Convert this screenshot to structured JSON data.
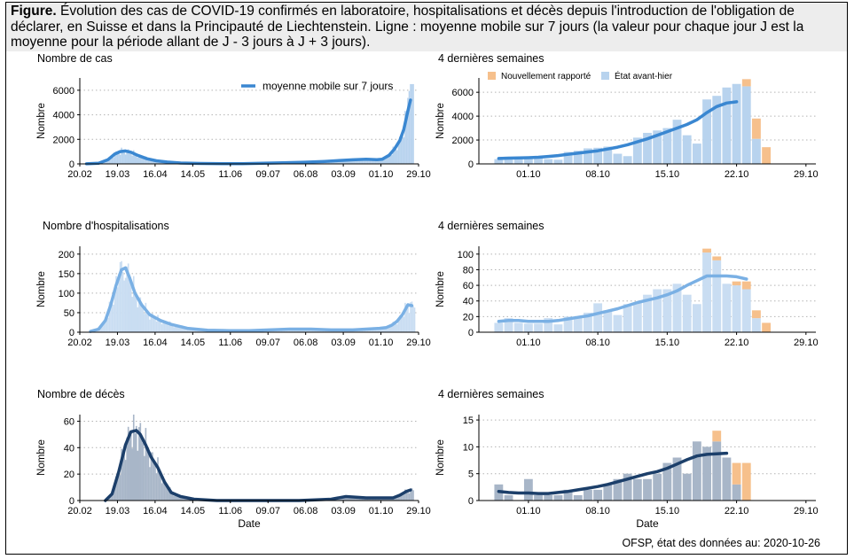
{
  "figure": {
    "caption_label": "Figure.",
    "caption_text": "Évolution des cas de COVID-19 confirmés en laboratoire, hospitalisations et décès depuis l'introduction de l'obligation de déclarer, en Suisse et dans la Principauté de Liechtenstein. Ligne : moyenne mobile sur 7 jours (la valeur pour chaque jour J est la moyenne pour la période allant de J - 3 jours à J + 3 jours).",
    "source": "OFSP, état des données au: 2020-10-26"
  },
  "colors": {
    "cases_line": "#3a87d1",
    "cases_bar": "#b8d3ee",
    "hosp_line": "#7ab0e4",
    "hosp_bar": "#c9ddf2",
    "deaths_line": "#1c3f6a",
    "deaths_bar": "#a8b6c8",
    "new_reported": "#f6c08c",
    "grid": "#b4b4b4"
  },
  "legends": {
    "moving_average": "moyenne mobile sur 7 jours",
    "new_reported": "Nouvellement rapporté",
    "day_before_yesterday": "État avant-hier"
  },
  "chart_data": [
    {
      "id": "cases_full",
      "type": "bar",
      "title": "Nombre de cas",
      "ylabel": "Nombre",
      "xlabel": "",
      "ylim": [
        0,
        7000
      ],
      "yticks": [
        0,
        2000,
        4000,
        6000
      ],
      "x_ticks": [
        "20.02",
        "19.03",
        "16.04",
        "14.05",
        "11.06",
        "09.07",
        "06.08",
        "03.09",
        "01.10",
        "29.10"
      ],
      "x_start": "2020-02-20",
      "x_end": "2020-10-29",
      "series_daily_weekly_approx": {
        "name": "Nombre de cas",
        "x": [
          "2020-02-24",
          "2020-03-02",
          "2020-03-09",
          "2020-03-16",
          "2020-03-23",
          "2020-03-30",
          "2020-04-06",
          "2020-04-13",
          "2020-04-20",
          "2020-04-27",
          "2020-05-04",
          "2020-05-11",
          "2020-05-18",
          "2020-05-25",
          "2020-06-01",
          "2020-06-08",
          "2020-06-15",
          "2020-06-22",
          "2020-06-29",
          "2020-07-06",
          "2020-07-13",
          "2020-07-20",
          "2020-07-27",
          "2020-08-03",
          "2020-08-10",
          "2020-08-17",
          "2020-08-24",
          "2020-08-31",
          "2020-09-07",
          "2020-09-14",
          "2020-09-21",
          "2020-09-28",
          "2020-10-05",
          "2020-10-12",
          "2020-10-16",
          "2020-10-19",
          "2020-10-21",
          "2020-10-22",
          "2020-10-24"
        ],
        "values": [
          5,
          30,
          250,
          900,
          1100,
          850,
          600,
          380,
          230,
          130,
          80,
          50,
          30,
          25,
          20,
          25,
          30,
          50,
          80,
          100,
          110,
          130,
          150,
          180,
          220,
          250,
          280,
          320,
          400,
          420,
          380,
          500,
          1200,
          2500,
          3500,
          4500,
          6000,
          6700,
          1500
        ]
      },
      "series": [
        {
          "name": "moyenne mobile sur 7 jours",
          "x": [
            "2020-02-25",
            "2020-03-05",
            "2020-03-12",
            "2020-03-17",
            "2020-03-21",
            "2020-03-25",
            "2020-03-29",
            "2020-04-03",
            "2020-04-10",
            "2020-04-17",
            "2020-04-25",
            "2020-05-05",
            "2020-05-20",
            "2020-06-05",
            "2020-06-20",
            "2020-07-05",
            "2020-07-20",
            "2020-08-05",
            "2020-08-20",
            "2020-09-01",
            "2020-09-10",
            "2020-09-20",
            "2020-09-28",
            "2020-10-02",
            "2020-10-07",
            "2020-10-11",
            "2020-10-15",
            "2020-10-18",
            "2020-10-21",
            "2020-10-23"
          ],
          "values": [
            5,
            60,
            350,
            800,
            1000,
            1050,
            950,
            700,
            420,
            250,
            150,
            70,
            35,
            20,
            25,
            50,
            90,
            140,
            200,
            280,
            330,
            380,
            340,
            380,
            700,
            1200,
            1900,
            2800,
            4300,
            5200
          ]
        }
      ]
    },
    {
      "id": "cases_4w",
      "type": "bar",
      "title": "4 dernières semaines",
      "ylabel": "Nombre",
      "xlabel": "",
      "ylim": [
        0,
        7200
      ],
      "yticks": [
        0,
        2000,
        4000,
        6000
      ],
      "x_ticks": [
        "01.10",
        "08.10",
        "15.10",
        "22.10",
        "29.10"
      ],
      "x_start": "2020-09-26",
      "x_end": "2020-10-30",
      "categories": [
        "2020-09-28",
        "2020-09-29",
        "2020-09-30",
        "2020-10-01",
        "2020-10-02",
        "2020-10-03",
        "2020-10-04",
        "2020-10-05",
        "2020-10-06",
        "2020-10-07",
        "2020-10-08",
        "2020-10-09",
        "2020-10-10",
        "2020-10-11",
        "2020-10-12",
        "2020-10-13",
        "2020-10-14",
        "2020-10-15",
        "2020-10-16",
        "2020-10-17",
        "2020-10-18",
        "2020-10-19",
        "2020-10-20",
        "2020-10-21",
        "2020-10-22",
        "2020-10-23",
        "2020-10-24",
        "2020-10-25"
      ],
      "series": [
        {
          "name": "État avant-hier",
          "values": [
            400,
            600,
            550,
            550,
            500,
            400,
            350,
            1000,
            1100,
            1300,
            1350,
            1450,
            850,
            650,
            2200,
            2600,
            2800,
            3000,
            3700,
            2400,
            1700,
            5400,
            5700,
            6400,
            6700,
            6500,
            2100,
            0
          ]
        },
        {
          "name": "Nouvellement rapporté",
          "values": [
            0,
            0,
            0,
            0,
            0,
            0,
            0,
            0,
            0,
            0,
            0,
            0,
            0,
            0,
            0,
            0,
            0,
            0,
            0,
            0,
            0,
            0,
            0,
            0,
            0,
            600,
            1700,
            1400
          ]
        },
        {
          "name": "moyenne mobile sur 7 jours",
          "values": [
            450,
            480,
            500,
            520,
            560,
            620,
            700,
            800,
            900,
            1000,
            1100,
            1250,
            1400,
            1600,
            1850,
            2100,
            2400,
            2700,
            3000,
            3300,
            3700,
            4300,
            4800,
            5100,
            5200,
            null,
            null,
            null
          ]
        }
      ]
    },
    {
      "id": "hosp_full",
      "type": "bar",
      "title": "Nombre d'hospitalisations",
      "ylabel": "Nombre",
      "xlabel": "",
      "ylim": [
        0,
        220
      ],
      "yticks": [
        0,
        50,
        100,
        150,
        200
      ],
      "x_ticks": [
        "20.02",
        "19.03",
        "16.04",
        "14.05",
        "11.06",
        "09.07",
        "06.08",
        "03.09",
        "01.10",
        "29.10"
      ],
      "x_start": "2020-02-20",
      "x_end": "2020-10-29",
      "series": [
        {
          "name": "moyenne mobile sur 7 jours",
          "x": [
            "2020-02-28",
            "2020-03-05",
            "2020-03-10",
            "2020-03-14",
            "2020-03-18",
            "2020-03-22",
            "2020-03-25",
            "2020-03-28",
            "2020-04-01",
            "2020-04-06",
            "2020-04-12",
            "2020-04-20",
            "2020-04-28",
            "2020-05-10",
            "2020-05-25",
            "2020-06-10",
            "2020-06-25",
            "2020-07-10",
            "2020-07-25",
            "2020-08-10",
            "2020-08-25",
            "2020-09-10",
            "2020-09-20",
            "2020-09-30",
            "2020-10-05",
            "2020-10-09",
            "2020-10-13",
            "2020-10-17",
            "2020-10-21",
            "2020-10-24"
          ],
          "values": [
            2,
            8,
            30,
            70,
            120,
            160,
            165,
            140,
            100,
            70,
            45,
            30,
            20,
            10,
            5,
            4,
            4,
            6,
            8,
            8,
            6,
            6,
            8,
            10,
            12,
            18,
            28,
            45,
            70,
            68
          ]
        }
      ]
    },
    {
      "id": "hosp_4w",
      "type": "bar",
      "title": "4 dernières semaines",
      "ylabel": "Nombre",
      "xlabel": "",
      "ylim": [
        0,
        110
      ],
      "yticks": [
        0,
        20,
        40,
        60,
        80,
        100
      ],
      "x_ticks": [
        "01.10",
        "08.10",
        "15.10",
        "22.10",
        "29.10"
      ],
      "x_start": "2020-09-26",
      "x_end": "2020-10-30",
      "categories": [
        "2020-09-28",
        "2020-09-29",
        "2020-09-30",
        "2020-10-01",
        "2020-10-02",
        "2020-10-03",
        "2020-10-04",
        "2020-10-05",
        "2020-10-06",
        "2020-10-07",
        "2020-10-08",
        "2020-10-09",
        "2020-10-10",
        "2020-10-11",
        "2020-10-12",
        "2020-10-13",
        "2020-10-14",
        "2020-10-15",
        "2020-10-16",
        "2020-10-17",
        "2020-10-18",
        "2020-10-19",
        "2020-10-20",
        "2020-10-21",
        "2020-10-22",
        "2020-10-23",
        "2020-10-24",
        "2020-10-25"
      ],
      "series": [
        {
          "name": "État avant-hier",
          "values": [
            12,
            18,
            12,
            11,
            11,
            18,
            10,
            20,
            20,
            25,
            37,
            28,
            22,
            36,
            38,
            48,
            55,
            55,
            62,
            48,
            36,
            102,
            92,
            62,
            60,
            55,
            18,
            0
          ]
        },
        {
          "name": "Nouvellement rapporté",
          "values": [
            0,
            0,
            0,
            0,
            0,
            0,
            0,
            0,
            0,
            0,
            0,
            0,
            0,
            0,
            0,
            0,
            0,
            0,
            0,
            0,
            0,
            5,
            5,
            0,
            5,
            10,
            10,
            12
          ]
        },
        {
          "name": "moyenne mobile sur 7 jours",
          "values": [
            14,
            15,
            15,
            14,
            14,
            14,
            15,
            17,
            19,
            21,
            24,
            27,
            30,
            34,
            38,
            41,
            44,
            48,
            53,
            60,
            66,
            72,
            72,
            72,
            71,
            68,
            null,
            null
          ]
        }
      ]
    },
    {
      "id": "deaths_full",
      "type": "bar",
      "title": "Nombre de décès",
      "ylabel": "Nombre",
      "xlabel": "Date",
      "ylim": [
        0,
        65
      ],
      "yticks": [
        0,
        20,
        40,
        60
      ],
      "x_ticks": [
        "20.02",
        "19.03",
        "16.04",
        "14.05",
        "11.06",
        "09.07",
        "06.08",
        "03.09",
        "01.10",
        "29.10"
      ],
      "x_start": "2020-02-20",
      "x_end": "2020-10-29",
      "series": [
        {
          "name": "moyenne mobile sur 7 jours",
          "x": [
            "2020-03-10",
            "2020-03-15",
            "2020-03-20",
            "2020-03-25",
            "2020-03-29",
            "2020-04-02",
            "2020-04-05",
            "2020-04-09",
            "2020-04-13",
            "2020-04-18",
            "2020-04-23",
            "2020-04-28",
            "2020-05-05",
            "2020-05-15",
            "2020-06-01",
            "2020-06-20",
            "2020-07-10",
            "2020-08-01",
            "2020-08-25",
            "2020-09-05",
            "2020-09-20",
            "2020-10-01",
            "2020-10-10",
            "2020-10-15",
            "2020-10-20",
            "2020-10-23"
          ],
          "values": [
            0,
            5,
            22,
            42,
            52,
            53,
            50,
            42,
            33,
            25,
            14,
            6,
            3,
            1,
            0,
            0,
            0,
            0,
            1,
            3,
            2,
            2,
            2,
            4,
            7,
            8
          ]
        }
      ]
    },
    {
      "id": "deaths_4w",
      "type": "bar",
      "title": "4 dernières semaines",
      "ylabel": "Nombre",
      "xlabel": "Date",
      "ylim": [
        0,
        16
      ],
      "yticks": [
        0,
        5,
        10,
        15
      ],
      "x_ticks": [
        "01.10",
        "08.10",
        "15.10",
        "22.10",
        "29.10"
      ],
      "x_start": "2020-09-26",
      "x_end": "2020-10-30",
      "categories": [
        "2020-09-28",
        "2020-09-29",
        "2020-09-30",
        "2020-10-01",
        "2020-10-02",
        "2020-10-03",
        "2020-10-04",
        "2020-10-05",
        "2020-10-06",
        "2020-10-07",
        "2020-10-08",
        "2020-10-09",
        "2020-10-10",
        "2020-10-11",
        "2020-10-12",
        "2020-10-13",
        "2020-10-14",
        "2020-10-15",
        "2020-10-16",
        "2020-10-17",
        "2020-10-18",
        "2020-10-19",
        "2020-10-20",
        "2020-10-21",
        "2020-10-22",
        "2020-10-23",
        "2020-10-24",
        "2020-10-25"
      ],
      "series": [
        {
          "name": "État avant-hier",
          "values": [
            3,
            1,
            0,
            4,
            1,
            1,
            1,
            2,
            1,
            2,
            2,
            3,
            4,
            5,
            4,
            4,
            5,
            7,
            8,
            5,
            11,
            10,
            11,
            8,
            3,
            0,
            0,
            0
          ]
        },
        {
          "name": "Nouvellement rapporté",
          "values": [
            0,
            0,
            0,
            0,
            0,
            0,
            0,
            0,
            0,
            0,
            0,
            0,
            0,
            0,
            0,
            0,
            0,
            0,
            0,
            0,
            0,
            0,
            2,
            0,
            4,
            7,
            0,
            0
          ]
        },
        {
          "name": "moyenne mobile sur 7 jours",
          "values": [
            1.7,
            1.5,
            1.4,
            1.4,
            1.3,
            1.3,
            1.5,
            1.7,
            2.0,
            2.3,
            2.6,
            3.0,
            3.5,
            4.0,
            4.5,
            5.0,
            5.4,
            6.0,
            6.8,
            7.6,
            8.3,
            8.6,
            8.7,
            8.8,
            null,
            null,
            null,
            null
          ]
        }
      ]
    }
  ]
}
